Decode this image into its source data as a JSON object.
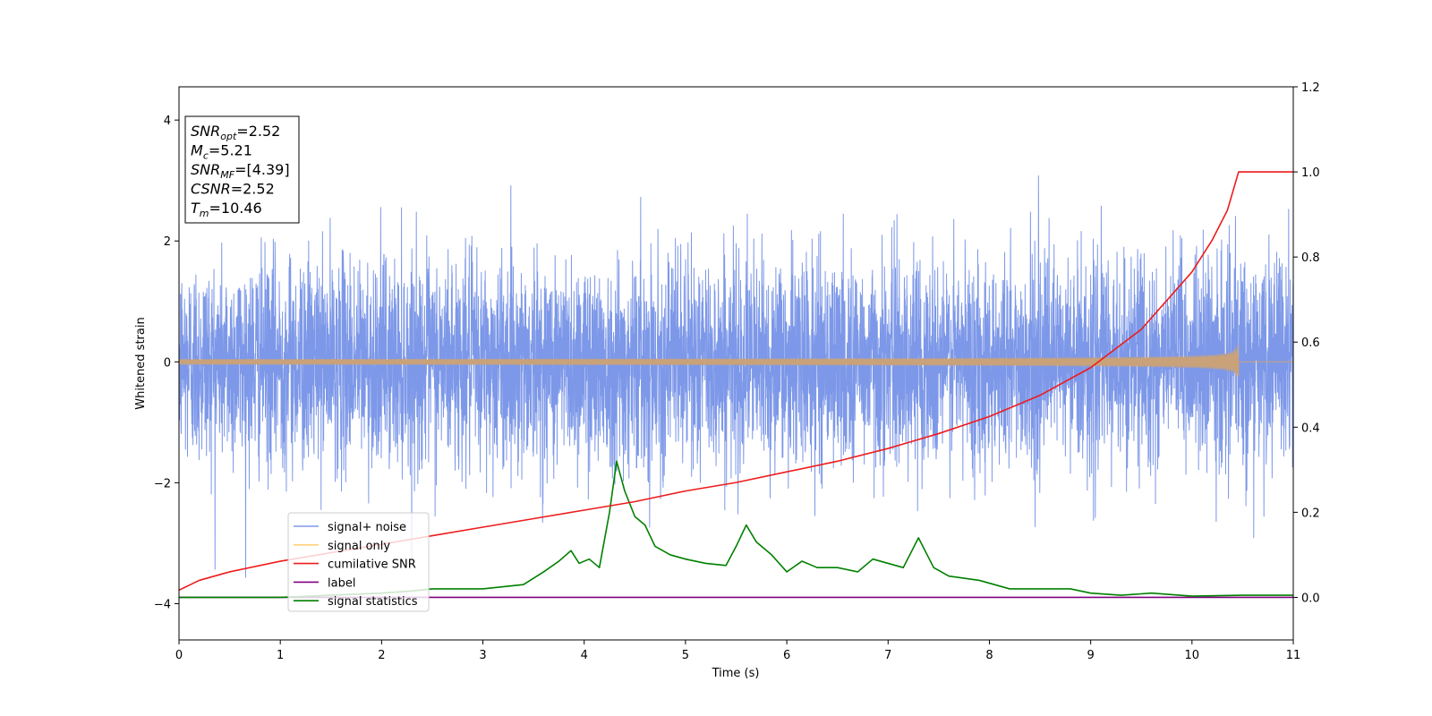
{
  "chart_data": {
    "type": "line",
    "xlabel": "Time (s)",
    "ylabel": "Whitened strain",
    "xlim": [
      0,
      11
    ],
    "ylim_left": [
      -4.6,
      4.55
    ],
    "ylim_right": [
      -0.1,
      1.2
    ],
    "xticks": [
      "0",
      "1",
      "2",
      "3",
      "4",
      "5",
      "6",
      "7",
      "8",
      "9",
      "10",
      "11"
    ],
    "yticks_left": [
      "−4",
      "−2",
      "0",
      "2",
      "4"
    ],
    "yticks_right": [
      "0.0",
      "0.2",
      "0.4",
      "0.6",
      "0.8",
      "1.0",
      "1.2"
    ],
    "grid": false,
    "legend_position": "lower-left",
    "annotation": {
      "lines": [
        {
          "italic": "SNR",
          "sub": "opt",
          "rest": "=2.52"
        },
        {
          "italic": "M",
          "sub": "c",
          "rest": "=5.21"
        },
        {
          "italic": "SNR",
          "sub": "MF",
          "rest": "=[4.39]"
        },
        {
          "italic": "CSNR",
          "sub": "",
          "rest": "=2.52"
        },
        {
          "italic": "T",
          "sub": "m",
          "rest": "=10.46"
        }
      ]
    },
    "series": [
      {
        "name": "signal+ noise",
        "color": "#6f8de6",
        "axis": "left",
        "kind": "noise",
        "noise_std": 0.85,
        "observed_range": [
          -4.15,
          4.05
        ]
      },
      {
        "name": "signal only",
        "color": "#c9a27a",
        "axis": "left",
        "kind": "chirp",
        "merger_time": 10.46,
        "peak_amplitude": 0.27
      },
      {
        "name": "cumilative SNR",
        "color": "#ee1c1c",
        "axis": "right",
        "x": [
          0,
          0.2,
          0.5,
          1,
          1.5,
          2,
          2.5,
          3,
          3.5,
          4,
          4.5,
          5,
          5.5,
          6,
          6.5,
          7,
          7.5,
          8,
          8.5,
          9,
          9.5,
          10,
          10.2,
          10.35,
          10.46,
          11
        ],
        "values": [
          0.017,
          0.04,
          0.06,
          0.085,
          0.105,
          0.125,
          0.145,
          0.165,
          0.185,
          0.205,
          0.225,
          0.25,
          0.27,
          0.295,
          0.32,
          0.35,
          0.385,
          0.425,
          0.475,
          0.54,
          0.63,
          0.765,
          0.84,
          0.91,
          1.0,
          1.0
        ]
      },
      {
        "name": "label",
        "color": "#800080",
        "axis": "right",
        "x": [
          0,
          11
        ],
        "values": [
          0.0,
          0.0
        ]
      },
      {
        "name": "signal statistics",
        "color": "#008000",
        "axis": "right",
        "x": [
          0,
          0.5,
          1,
          1.5,
          2,
          2.3,
          2.5,
          2.8,
          3,
          3.2,
          3.4,
          3.6,
          3.75,
          3.87,
          3.95,
          4.05,
          4.15,
          4.25,
          4.32,
          4.4,
          4.5,
          4.6,
          4.7,
          4.85,
          5,
          5.2,
          5.4,
          5.5,
          5.6,
          5.7,
          5.85,
          6,
          6.15,
          6.3,
          6.5,
          6.7,
          6.85,
          7,
          7.15,
          7.3,
          7.45,
          7.6,
          7.9,
          8.2,
          8.5,
          8.8,
          9.0,
          9.3,
          9.6,
          10,
          10.5,
          11
        ],
        "values": [
          0.0,
          0.0,
          0.0,
          0.005,
          0.01,
          0.015,
          0.02,
          0.02,
          0.02,
          0.025,
          0.03,
          0.06,
          0.085,
          0.11,
          0.08,
          0.09,
          0.07,
          0.2,
          0.32,
          0.25,
          0.19,
          0.17,
          0.12,
          0.1,
          0.09,
          0.08,
          0.075,
          0.12,
          0.17,
          0.13,
          0.1,
          0.06,
          0.085,
          0.07,
          0.07,
          0.06,
          0.09,
          0.08,
          0.07,
          0.14,
          0.07,
          0.05,
          0.04,
          0.02,
          0.02,
          0.02,
          0.01,
          0.005,
          0.01,
          0.003,
          0.005,
          0.005
        ]
      }
    ]
  }
}
